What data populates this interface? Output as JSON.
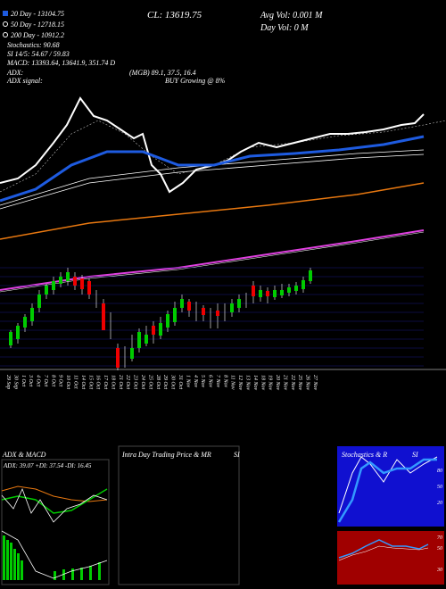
{
  "header": {
    "legend": [
      "20 Day - 13104.75",
      "50 Day - 12718.15",
      "200 Day - 10912.2"
    ],
    "close": "CL: 13619.75",
    "avg_vol": "Avg Vol: 0.001 M",
    "day_vol": "Day Vol: 0 M",
    "indicators": [
      "Stochastics: 90.68",
      "SI 14/5: 54.67 / 59.83",
      "MACD: 13393.64, 13641.9, 351.74 D"
    ],
    "adx": "ADX:",
    "adx_signal": "ADX signal:",
    "mgb": "(MGB) 89.1, 37.5, 16.4",
    "signal": "BUY Growing @ 8%"
  },
  "dates": [
    "29 Sep",
    "30 Sep",
    "1 Oct",
    "3 Oct",
    "4 Oct",
    "7 Oct",
    "8 Oct",
    "9 Oct",
    "10 Oct",
    "11 Oct",
    "14 Oct",
    "15 Oct",
    "16 Oct",
    "17 Oct",
    "18 Oct",
    "21 Oct",
    "22 Oct",
    "23 Oct",
    "24 Oct",
    "25 Oct",
    "28 Oct",
    "29 Oct",
    "30 Oct",
    "31 Oct",
    "1 Nov",
    "4 Nov",
    "5 Nov",
    "6 Nov",
    "7 Nov",
    "8 Nov",
    "11 Nov",
    "12 Nov",
    "13 Nov",
    "14 Nov",
    "18 Nov",
    "19 Nov",
    "20 Nov",
    "21 Nov",
    "22 Nov",
    "25 Nov",
    "26 Nov",
    "27 Nov"
  ],
  "panels": {
    "adx_macd": {
      "title": "ADX & MACD",
      "readout": "ADX: 39.07 +DI: 37.54 -DI: 16.45"
    },
    "intraday": {
      "title": "Intra Day Trading Price & MR",
      "suffix": "SI"
    },
    "stochastics": {
      "title": "Stochastics & R",
      "suffix": "SI",
      "stoch_levels": [
        "80",
        "50",
        "20"
      ],
      "rsi_levels": [
        "70",
        "50",
        "30"
      ]
    }
  }
}
